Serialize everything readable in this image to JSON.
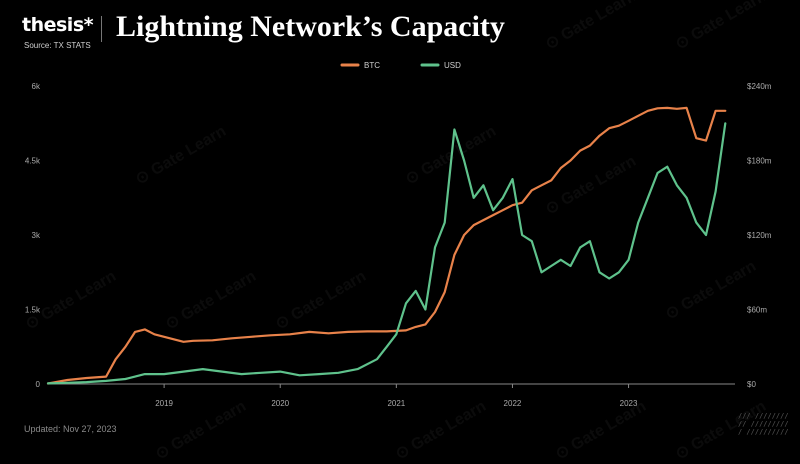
{
  "header": {
    "brand": "thesis*",
    "title": "Lightning Network’s Capacity",
    "source": "Source: TX STATS"
  },
  "footer": {
    "updated": "Updated: Nov 27, 2023"
  },
  "watermark": "Gate Learn",
  "colors": {
    "btc": "#e8824a",
    "usd": "#5fc28c",
    "background": "#000000",
    "axis": "#aaaaaa"
  },
  "chart_data": {
    "type": "line",
    "x_tick_labels": [
      "2019",
      "2020",
      "2021",
      "2022",
      "2023"
    ],
    "x_range": [
      "2018-01",
      "2023-12"
    ],
    "y_left": {
      "range": [
        0,
        6000
      ],
      "ticks": [
        0,
        1500,
        3000,
        4500,
        6000
      ],
      "tick_labels": [
        "0",
        "1.5k",
        "3k",
        "4.5k",
        "6k"
      ]
    },
    "y_right": {
      "range": [
        0,
        240000000
      ],
      "ticks": [
        0,
        60000000,
        120000000,
        180000000,
        240000000
      ],
      "tick_labels": [
        "$0",
        "$60m",
        "$120m",
        "$180m",
        "$240m"
      ]
    },
    "legend": {
      "position": "top-center"
    },
    "grid": false,
    "series": [
      {
        "name": "BTC",
        "axis": "left",
        "x": [
          "2018-01",
          "2018-03",
          "2018-05",
          "2018-07",
          "2018-08",
          "2018-09",
          "2018-10",
          "2018-11",
          "2018-12",
          "2019-01",
          "2019-02",
          "2019-03",
          "2019-04",
          "2019-06",
          "2019-08",
          "2019-10",
          "2019-12",
          "2020-02",
          "2020-04",
          "2020-06",
          "2020-08",
          "2020-10",
          "2020-12",
          "2021-02",
          "2021-03",
          "2021-04",
          "2021-05",
          "2021-06",
          "2021-07",
          "2021-08",
          "2021-09",
          "2021-10",
          "2021-11",
          "2021-12",
          "2022-01",
          "2022-02",
          "2022-03",
          "2022-04",
          "2022-05",
          "2022-06",
          "2022-07",
          "2022-08",
          "2022-09",
          "2022-10",
          "2022-11",
          "2022-12",
          "2023-01",
          "2023-02",
          "2023-03",
          "2023-04",
          "2023-05",
          "2023-06",
          "2023-07",
          "2023-08",
          "2023-09",
          "2023-10",
          "2023-11"
        ],
        "values": [
          10,
          80,
          120,
          150,
          500,
          750,
          1050,
          1100,
          1000,
          950,
          900,
          850,
          870,
          880,
          920,
          950,
          980,
          1000,
          1050,
          1020,
          1050,
          1060,
          1060,
          1080,
          1150,
          1200,
          1450,
          1850,
          2600,
          3000,
          3200,
          3300,
          3400,
          3500,
          3600,
          3650,
          3900,
          4000,
          4100,
          4350,
          4500,
          4700,
          4800,
          5000,
          5150,
          5200,
          5300,
          5400,
          5500,
          5550,
          5560,
          5540,
          5560,
          4950,
          4900,
          5500,
          5500
        ]
      },
      {
        "name": "USD",
        "axis": "right",
        "x": [
          "2018-01",
          "2018-03",
          "2018-05",
          "2018-07",
          "2018-09",
          "2018-11",
          "2019-01",
          "2019-03",
          "2019-05",
          "2019-07",
          "2019-09",
          "2019-11",
          "2020-01",
          "2020-03",
          "2020-05",
          "2020-07",
          "2020-09",
          "2020-11",
          "2020-12",
          "2021-01",
          "2021-02",
          "2021-03",
          "2021-04",
          "2021-05",
          "2021-06",
          "2021-07",
          "2021-08",
          "2021-09",
          "2021-10",
          "2021-11",
          "2021-12",
          "2022-01",
          "2022-02",
          "2022-03",
          "2022-04",
          "2022-05",
          "2022-06",
          "2022-07",
          "2022-08",
          "2022-09",
          "2022-10",
          "2022-11",
          "2022-12",
          "2023-01",
          "2023-02",
          "2023-03",
          "2023-04",
          "2023-05",
          "2023-06",
          "2023-07",
          "2023-08",
          "2023-09",
          "2023-10",
          "2023-11"
        ],
        "values": [
          500000,
          1000000,
          1500000,
          2500000,
          4000000,
          8000000,
          8000000,
          10000000,
          12000000,
          10000000,
          8000000,
          9000000,
          10000000,
          7000000,
          8000000,
          9000000,
          12000000,
          20000000,
          30000000,
          40000000,
          65000000,
          75000000,
          60000000,
          110000000,
          130000000,
          205000000,
          180000000,
          150000000,
          160000000,
          140000000,
          150000000,
          165000000,
          120000000,
          115000000,
          90000000,
          95000000,
          100000000,
          95000000,
          110000000,
          115000000,
          90000000,
          85000000,
          90000000,
          100000000,
          130000000,
          150000000,
          170000000,
          175000000,
          160000000,
          150000000,
          130000000,
          120000000,
          155000000,
          210000000
        ]
      }
    ]
  }
}
